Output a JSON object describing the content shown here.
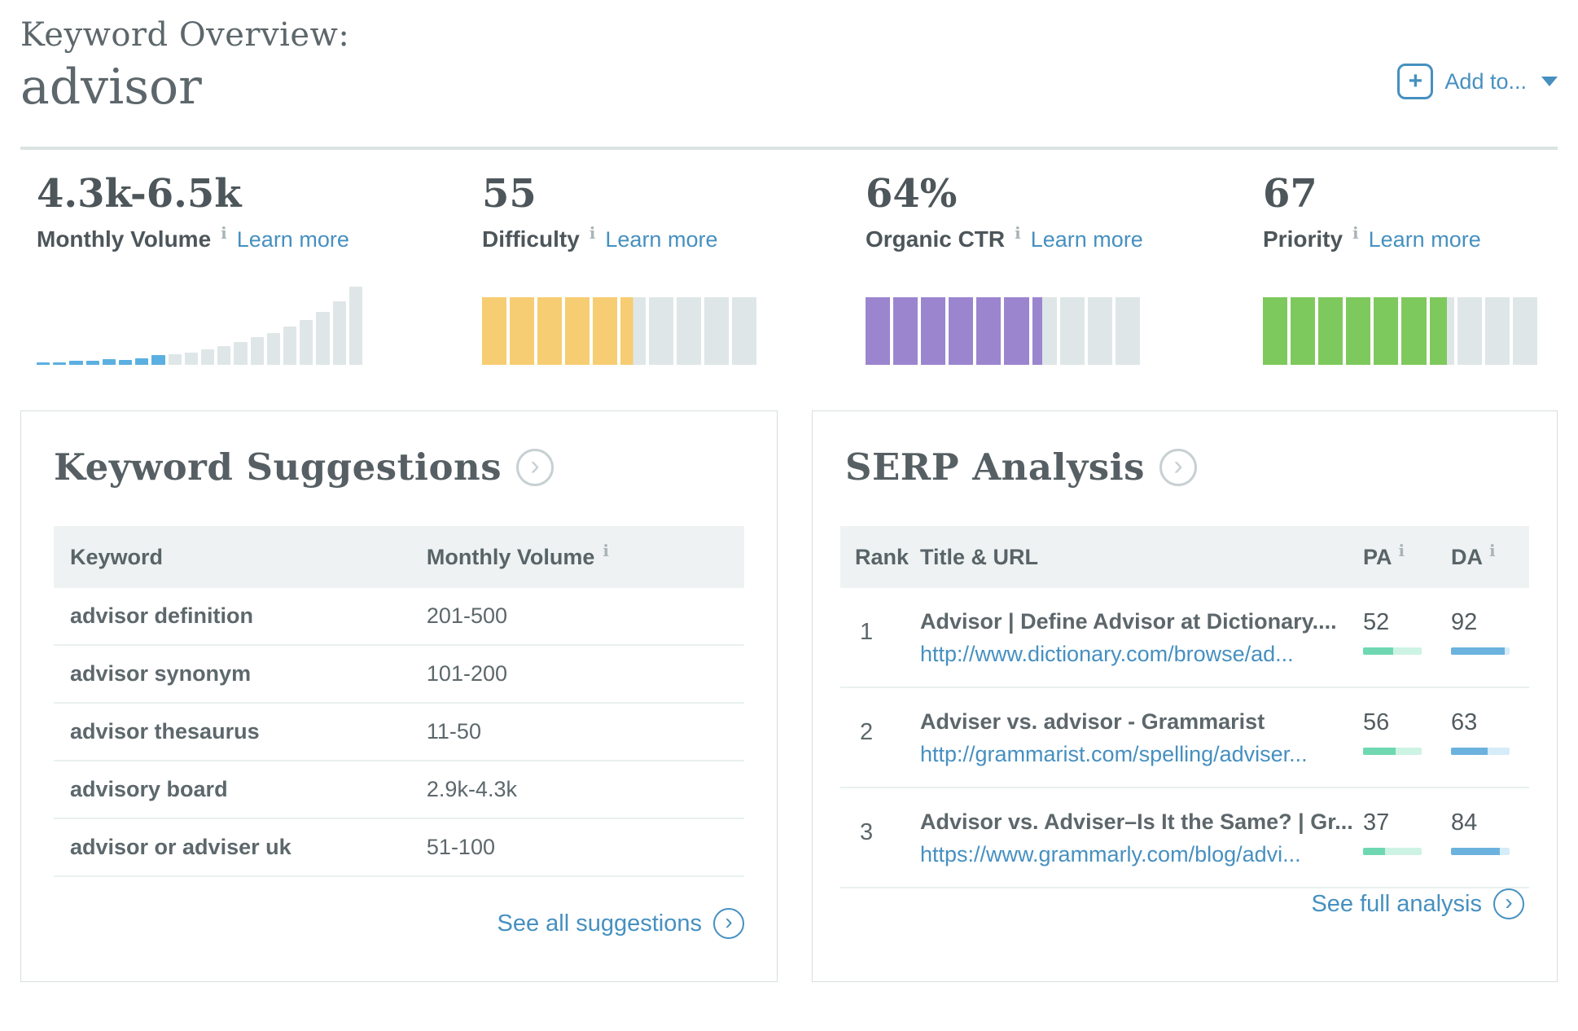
{
  "header": {
    "eyebrow": "Keyword Overview:",
    "keyword": "advisor",
    "add_to_label": "Add to..."
  },
  "icons": {
    "plus": "+",
    "info": "i",
    "chevron_right": "›"
  },
  "metrics": [
    {
      "value": "4.3k-6.5k",
      "label": "Monthly Volume",
      "learn_more": "Learn more",
      "viz": {
        "type": "histogram",
        "heights": [
          3,
          3,
          5,
          5,
          7,
          6,
          8,
          12,
          14,
          16,
          20,
          24,
          29,
          35,
          41,
          49,
          57,
          68,
          81,
          100
        ],
        "highlight_count": 8,
        "highlight_color": "#5bb0e1",
        "rest_color": "#dfe6e7"
      }
    },
    {
      "value": "55",
      "label": "Difficulty",
      "learn_more": "Learn more",
      "viz": {
        "type": "gauge",
        "segments": 10,
        "percent": 55,
        "fill_color": "#f6cd72",
        "rest_color": "#dfe6e7"
      }
    },
    {
      "value": "64%",
      "label": "Organic CTR",
      "learn_more": "Learn more",
      "viz": {
        "type": "gauge",
        "segments": 10,
        "percent": 64,
        "fill_color": "#9b85cf",
        "rest_color": "#dfe6e7"
      }
    },
    {
      "value": "67",
      "label": "Priority",
      "learn_more": "Learn more",
      "viz": {
        "type": "gauge",
        "segments": 10,
        "percent": 67,
        "fill_color": "#7ec95d",
        "rest_color": "#dfe6e7"
      }
    }
  ],
  "keyword_suggestions": {
    "title": "Keyword Suggestions",
    "columns": {
      "keyword": "Keyword",
      "volume": "Monthly Volume"
    },
    "rows": [
      {
        "keyword": "advisor definition",
        "volume": "201-500"
      },
      {
        "keyword": "advisor synonym",
        "volume": "101-200"
      },
      {
        "keyword": "advisor thesaurus",
        "volume": "11-50"
      },
      {
        "keyword": "advisory board",
        "volume": "2.9k-4.3k"
      },
      {
        "keyword": "advisor or adviser uk",
        "volume": "51-100"
      }
    ],
    "footer_link": "See all suggestions"
  },
  "serp_analysis": {
    "title": "SERP Analysis",
    "columns": {
      "rank": "Rank",
      "title_url": "Title & URL",
      "pa": "PA",
      "da": "DA"
    },
    "rows": [
      {
        "rank": "1",
        "title": "Advisor | Define Advisor at Dictionary....",
        "url": "http://www.dictionary.com/browse/ad...",
        "pa": 52,
        "da": 92
      },
      {
        "rank": "2",
        "title": "Adviser vs. advisor - Grammarist",
        "url": "http://grammarist.com/spelling/adviser...",
        "pa": 56,
        "da": 63
      },
      {
        "rank": "3",
        "title": "Advisor vs. Adviser–Is It the Same? | Gr...",
        "url": "https://www.grammarly.com/blog/advi...",
        "pa": 37,
        "da": 84
      }
    ],
    "footer_link": "See full analysis"
  },
  "colors": {
    "link_blue": "#4690c0",
    "pa_fill": "#6fd8b2",
    "pa_track": "#cdf3e5",
    "da_fill": "#6cb2de",
    "da_track": "#d6ecf8"
  }
}
